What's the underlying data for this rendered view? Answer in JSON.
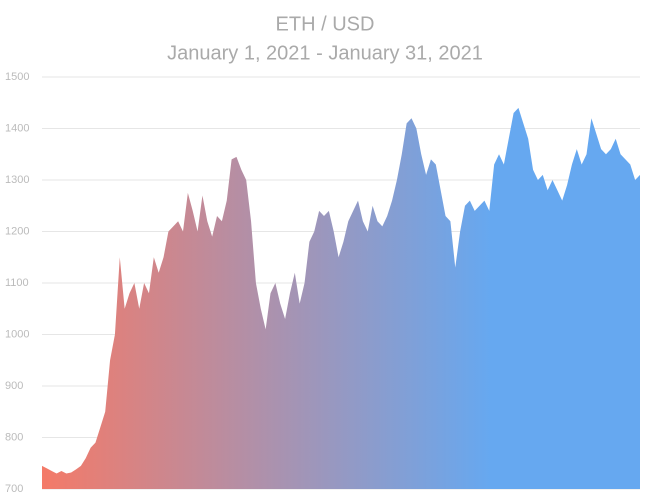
{
  "chart_data": {
    "type": "area",
    "title": "ETH / USD",
    "subtitle": "January 1, 2021 - January 31, 2021",
    "values": [
      745,
      740,
      735,
      730,
      735,
      730,
      732,
      738,
      745,
      760,
      780,
      790,
      820,
      850,
      950,
      1000,
      1150,
      1050,
      1080,
      1100,
      1050,
      1100,
      1080,
      1150,
      1120,
      1150,
      1200,
      1210,
      1220,
      1200,
      1275,
      1240,
      1200,
      1270,
      1220,
      1190,
      1230,
      1220,
      1260,
      1340,
      1345,
      1320,
      1300,
      1220,
      1100,
      1050,
      1010,
      1080,
      1100,
      1060,
      1030,
      1080,
      1120,
      1060,
      1100,
      1180,
      1200,
      1240,
      1230,
      1240,
      1200,
      1150,
      1180,
      1220,
      1240,
      1260,
      1220,
      1200,
      1250,
      1220,
      1210,
      1230,
      1260,
      1300,
      1350,
      1410,
      1420,
      1400,
      1350,
      1310,
      1340,
      1330,
      1280,
      1230,
      1220,
      1130,
      1200,
      1250,
      1260,
      1240,
      1250,
      1260,
      1240,
      1330,
      1350,
      1330,
      1380,
      1430,
      1440,
      1410,
      1380,
      1320,
      1300,
      1310,
      1280,
      1300,
      1280,
      1260,
      1290,
      1330,
      1360,
      1330,
      1350,
      1420,
      1390,
      1360,
      1350,
      1360,
      1380,
      1350,
      1340,
      1330,
      1300,
      1310
    ],
    "gradient": [
      "#f47a68",
      "#66a8f0"
    ],
    "ylim": [
      700,
      1500
    ],
    "yticks": [
      700,
      800,
      900,
      1000,
      1100,
      1200,
      1300,
      1400,
      1500
    ],
    "grid": true
  }
}
